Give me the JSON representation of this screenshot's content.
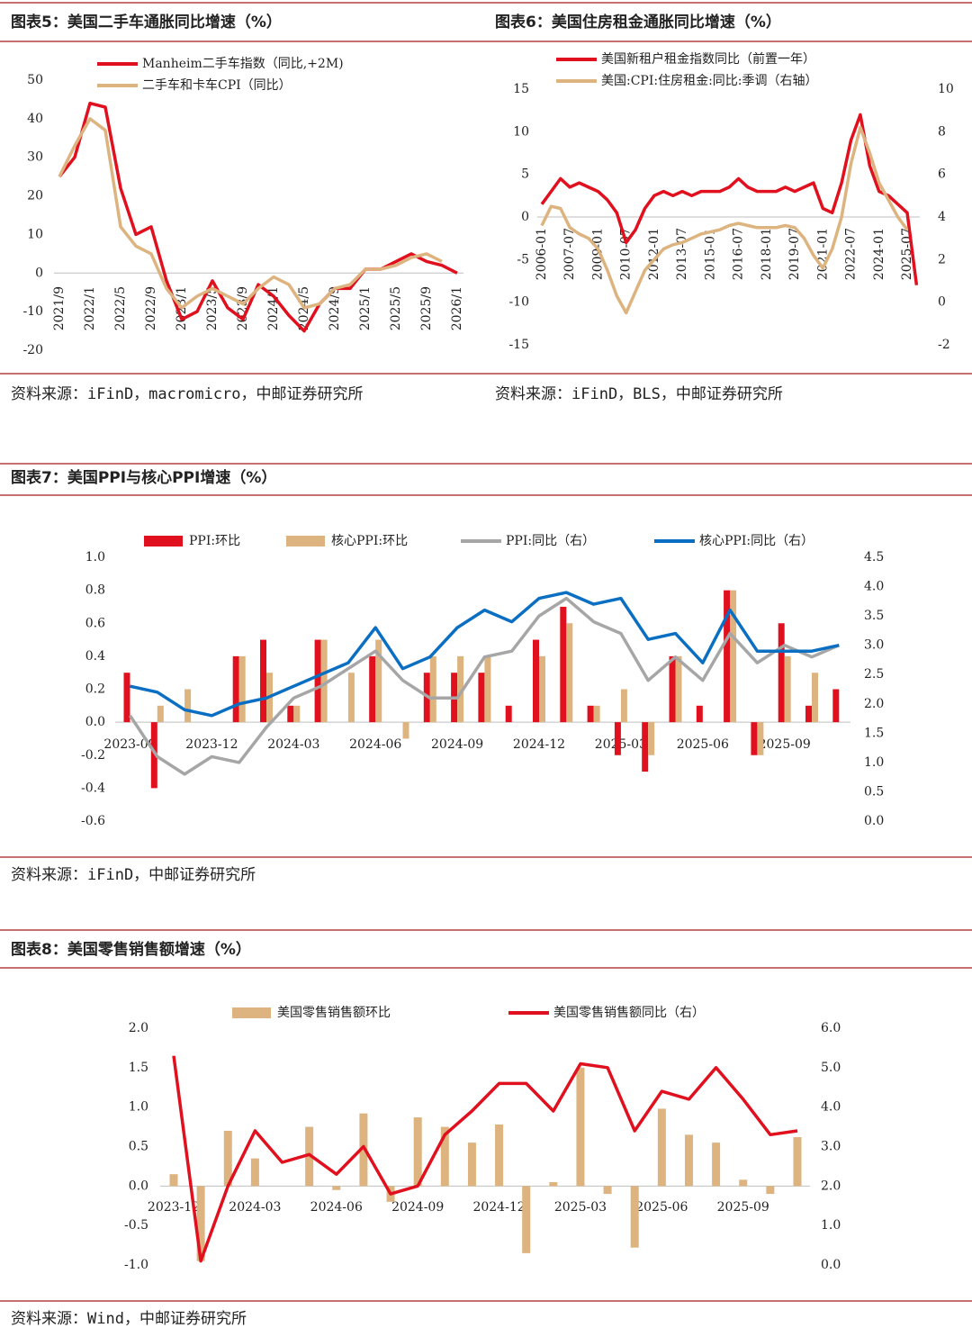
{
  "chart_data": [
    {
      "type": "line",
      "title": "图表5：美国二手车通胀同比增速（%）",
      "source": "资料来源：iFinD，macromicro，中邮证券研究所",
      "categories": [
        "2021/9",
        null,
        "2022/1",
        null,
        "2022/5",
        null,
        "2022/9",
        null,
        "2023/1",
        null,
        "2023/5",
        null,
        "2023/9",
        null,
        "2024/1",
        null,
        "2024/5",
        null,
        "2024/9",
        null,
        "2025/1",
        null,
        "2025/5",
        null,
        "2025/9",
        null,
        "2026/1"
      ],
      "ylim": [
        -20,
        50
      ],
      "yticks": [
        50,
        40,
        30,
        20,
        10,
        0,
        -10,
        -20
      ],
      "series": [
        {
          "name": "Manheim二手车指数（同比,+2M)",
          "type": "line",
          "color": "#e0101e",
          "values": [
            25,
            30,
            44,
            43,
            22,
            10,
            12,
            -2,
            -12,
            -10,
            -2,
            -9,
            -12,
            -3,
            -6,
            -11,
            -15,
            -8,
            -4,
            -4,
            1,
            1,
            3,
            5,
            3,
            2,
            0
          ]
        },
        {
          "name": "二手车和卡车CPI（同比）",
          "type": "line",
          "color": "#ddb47f",
          "values": [
            25,
            33,
            40,
            37,
            12,
            7,
            5,
            -4,
            -9,
            -6,
            -4,
            -6,
            -8,
            -4,
            -1,
            -3,
            -9,
            -8,
            -4,
            -3,
            1,
            1,
            2,
            4,
            5,
            3,
            null
          ]
        }
      ]
    },
    {
      "type": "line",
      "title": "图表6：美国住房租金通胀同比增速（%）",
      "source": "资料来源：iFinD，BLS，中邮证券研究所",
      "categories": [
        "2006-01",
        null,
        null,
        "2007-07",
        null,
        null,
        "2009-01",
        null,
        null,
        "2010-07",
        null,
        null,
        "2012-01",
        null,
        null,
        "2013-07",
        null,
        null,
        "2015-01",
        null,
        null,
        "2016-07",
        null,
        null,
        "2018-01",
        null,
        null,
        "2019-07",
        null,
        null,
        "2021-01",
        null,
        null,
        "2022-07",
        null,
        null,
        "2024-01",
        null,
        null,
        "2025-07",
        null
      ],
      "ylim": [
        -15,
        15
      ],
      "yticks": [
        15,
        10,
        5,
        0,
        -5,
        -10,
        -15
      ],
      "y2lim": [
        -2,
        10
      ],
      "y2ticks": [
        10,
        8,
        6,
        4,
        2,
        0,
        -2
      ],
      "series": [
        {
          "name": "美国新租户租金指数同比（前置一年）",
          "type": "line",
          "color": "#e0101e",
          "values": [
            1.5,
            3,
            4.5,
            3.5,
            4,
            3.5,
            3,
            2,
            0.5,
            -3,
            -1.5,
            1,
            2.5,
            3,
            2.5,
            3,
            2.5,
            3,
            3,
            3,
            3.5,
            4.5,
            3.5,
            3,
            3,
            3,
            3.5,
            3,
            3.5,
            4,
            1,
            0.5,
            4,
            9,
            12,
            6,
            3,
            2.5,
            1.5,
            0.5,
            -8
          ]
        },
        {
          "name": "美国:CPI:住房租金:同比:季调（右轴）",
          "type": "line",
          "axis": "y2",
          "color": "#ddb47f",
          "values": [
            3.6,
            4.5,
            4.4,
            3.5,
            3.2,
            3,
            2.5,
            1.5,
            0.3,
            -0.5,
            0.5,
            1.5,
            2,
            2.5,
            2.7,
            2.8,
            3,
            3.2,
            3.3,
            3.4,
            3.6,
            3.7,
            3.6,
            3.5,
            3.5,
            3.5,
            3.6,
            3.5,
            3,
            2.2,
            1.6,
            2.5,
            4,
            6.5,
            8.2,
            7,
            5.6,
            4.8,
            4,
            3.4,
            null
          ]
        }
      ]
    },
    {
      "type": "combo",
      "title": "图表7：美国PPI与核心PPI增速（%）",
      "source": "资料来源：iFinD，中邮证券研究所",
      "categories": [
        "2023-09",
        null,
        null,
        "2023-12",
        null,
        null,
        "2024-03",
        null,
        null,
        "2024-06",
        null,
        null,
        "2024-09",
        null,
        null,
        "2024-12",
        null,
        null,
        "2025-03",
        null,
        null,
        "2025-06",
        null,
        null,
        "2025-09",
        null,
        null
      ],
      "ylim": [
        -0.6,
        1
      ],
      "yticks": [
        {
          "value": 1,
          "label": "1.0"
        },
        0.8,
        0.6,
        0.4,
        0.2,
        {
          "value": 0,
          "label": "0.0"
        },
        -0.2,
        -0.4,
        -0.6
      ],
      "y2lim": [
        0,
        4.5
      ],
      "y2ticks": [
        4.5,
        {
          "value": 4,
          "label": "4.0"
        },
        3.5,
        {
          "value": 3,
          "label": "3.0"
        },
        2.5,
        {
          "value": 2,
          "label": "2.0"
        },
        1.5,
        {
          "value": 1,
          "label": "1.0"
        },
        0.5,
        {
          "value": 0,
          "label": "0.0"
        }
      ],
      "series": [
        {
          "name": "PPI:环比",
          "type": "bar",
          "color": "#e0101e",
          "values": [
            0.3,
            -0.4,
            0,
            0,
            0.4,
            0.5,
            0.1,
            0.5,
            0,
            0.4,
            0,
            0.3,
            0.3,
            0.3,
            0.1,
            0.5,
            0.7,
            0.1,
            -0.2,
            -0.3,
            0.4,
            0.1,
            0.8,
            -0.2,
            0.6,
            0.1,
            0.2
          ]
        },
        {
          "name": "核心PPI:环比",
          "type": "bar",
          "color": "#ddb47f",
          "values": [
            0,
            0.1,
            0.2,
            0,
            0.4,
            0.3,
            0.1,
            0.5,
            0.3,
            0.5,
            -0.1,
            0.4,
            0.4,
            0.4,
            0,
            0.4,
            0.6,
            0.1,
            0.2,
            -0.2,
            0.4,
            0,
            0.8,
            -0.2,
            0.4,
            0.3,
            0
          ]
        },
        {
          "name": "PPI:同比（右）",
          "type": "line",
          "axis": "y2",
          "color": "#a6a6a6",
          "values": [
            1.8,
            1.1,
            0.8,
            1.1,
            1,
            1.6,
            2.1,
            2.3,
            2.6,
            2.9,
            2.4,
            2.1,
            2.1,
            2.8,
            2.9,
            3.5,
            3.8,
            3.4,
            3.2,
            2.4,
            2.8,
            2.4,
            3.2,
            2.7,
            3,
            2.8,
            3
          ]
        },
        {
          "name": "核心PPI:同比（右）",
          "type": "line",
          "axis": "y2",
          "color": "#0a6fc2",
          "values": [
            2.3,
            2.2,
            1.9,
            1.8,
            2,
            2.1,
            2.3,
            2.5,
            2.7,
            3.3,
            2.6,
            2.8,
            3.3,
            3.6,
            3.4,
            3.8,
            3.9,
            3.7,
            3.8,
            3.1,
            3.2,
            2.7,
            3.6,
            2.9,
            2.9,
            2.9,
            3
          ]
        }
      ]
    },
    {
      "type": "combo",
      "title": "图表8：美国零售销售额增速（%）",
      "source": "资料来源：Wind，中邮证券研究所",
      "categories": [
        "2023-12",
        null,
        null,
        "2024-03",
        null,
        null,
        "2024-06",
        null,
        null,
        "2024-09",
        null,
        null,
        "2024-12",
        null,
        null,
        "2025-03",
        null,
        null,
        "2025-06",
        null,
        null,
        "2025-09",
        null,
        null
      ],
      "ylim": [
        -1,
        2
      ],
      "yticks": [
        {
          "value": 2,
          "label": "2.0"
        },
        1.5,
        {
          "value": 1,
          "label": "1.0"
        },
        0.5,
        {
          "value": 0,
          "label": "0.0"
        },
        -0.5,
        {
          "value": -1,
          "label": "-1.0"
        }
      ],
      "y2lim": [
        0,
        6
      ],
      "y2ticks": [
        {
          "value": 6,
          "label": "6.0"
        },
        {
          "value": 5,
          "label": "5.0"
        },
        {
          "value": 4,
          "label": "4.0"
        },
        {
          "value": 3,
          "label": "3.0"
        },
        {
          "value": 2,
          "label": "2.0"
        },
        {
          "value": 1,
          "label": "1.0"
        },
        {
          "value": 0,
          "label": "0.0"
        }
      ],
      "series": [
        {
          "name": "美国零售销售额环比",
          "type": "bar",
          "color": "#ddb47f",
          "values": [
            0.15,
            -0.95,
            0.7,
            0.35,
            0,
            0.75,
            -0.05,
            0.92,
            -0.2,
            0.87,
            0.75,
            0.55,
            0.78,
            -0.85,
            0.05,
            1.5,
            -0.1,
            -0.78,
            0.98,
            0.65,
            0.55,
            0.08,
            -0.1,
            0.62
          ]
        },
        {
          "name": "美国零售销售额同比（右）",
          "type": "line",
          "axis": "y2",
          "color": "#e0101e",
          "values": [
            5.3,
            0.1,
            2,
            3.4,
            2.6,
            2.8,
            2.3,
            3,
            1.8,
            2,
            3.3,
            3.9,
            4.6,
            4.6,
            3.9,
            5.1,
            5,
            3.4,
            4.4,
            4.2,
            5,
            4.2,
            3.3,
            3.4
          ]
        }
      ]
    }
  ]
}
